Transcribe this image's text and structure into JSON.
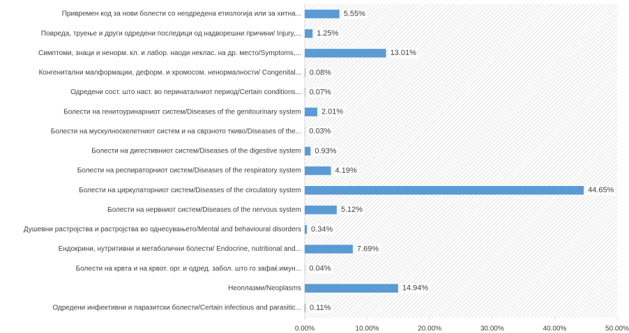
{
  "chart_data": {
    "type": "bar",
    "orientation": "horizontal",
    "categories": [
      "Привремен код за нови болести со неодредена етиологија или за хитна...",
      "Повреда, труење и други одредени последици од надворешни причини/ Injury,...",
      "Симптоми, знаци и ненорм. кл. и лабор. наоди неклас. на др. место/Symptoms,...",
      "Конгенитални малформации, деформ. и хромосом. ненормалности/ Congenital...",
      "Одредени сост. што наст. во перинаталниот период/Certain conditions...",
      "Болести на генитоуринарниот систем/Diseases of the genitourinary system",
      "Болести на мускулноскелетниот  систем и на сврзното ткиво/Diseases of the...",
      "Болести на дигестивниот систем/Diseases of the digestive system",
      "Болести на респираторниот систем/Diseases of the respiratory system",
      "Болести на циркулаторниот систем/Diseases of the circulatory system",
      "Болести на нервниот систем/Diseases of the nervous system",
      "Душевни растројства и растројства во однесувањето/Mental and behavioural disorders",
      "Ендокрини, нутритивни и метаболични болести/ Endocrine, nutritional and...",
      "Болести на крвта и на крвот. орг. и одред. забол. што го зафаќ.имун...",
      "Неоплазми/Neoplasms",
      "Одредени инфективни и паразитски болести/Certain infectious and parasitic..."
    ],
    "values": [
      5.55,
      1.25,
      13.01,
      0.08,
      0.07,
      2.01,
      0.03,
      0.93,
      4.19,
      44.65,
      5.12,
      0.34,
      7.69,
      0.04,
      14.94,
      0.11
    ],
    "value_labels": [
      "5.55%",
      "1.25%",
      "13.01%",
      "0.08%",
      "0.07%",
      "2.01%",
      "0.03%",
      "0.93%",
      "4.19%",
      "44.65%",
      "5.12%",
      "0.34%",
      "7.69%",
      "0.04%",
      "14.94%",
      "0.11%"
    ],
    "color": "#5b9bd5",
    "xlim": [
      0,
      50
    ],
    "xticks": [
      {
        "value": 0,
        "label": "0.00%"
      },
      {
        "value": 10,
        "label": "10.00%"
      },
      {
        "value": 20,
        "label": "20.00%"
      },
      {
        "value": 30,
        "label": "30.00%"
      },
      {
        "value": 40,
        "label": "40.00%"
      },
      {
        "value": 50,
        "label": "50.00%"
      }
    ]
  }
}
